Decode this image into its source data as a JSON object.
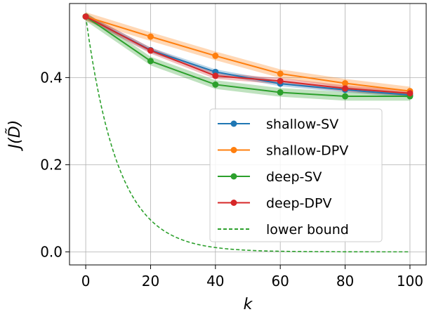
{
  "chart_data": {
    "type": "line",
    "title": "",
    "xlabel": "k",
    "ylabel": "J(D̃)",
    "xlim": [
      -5,
      105
    ],
    "ylim": [
      -0.03,
      0.57
    ],
    "grid": true,
    "legend_position": "center-right",
    "x": [
      0,
      20,
      40,
      60,
      80,
      100
    ],
    "xticks": [
      0,
      20,
      40,
      60,
      80,
      100
    ],
    "xtick_labels": [
      "0",
      "20",
      "40",
      "60",
      "80",
      "100"
    ],
    "yticks": [
      0.0,
      0.2,
      0.4
    ],
    "ytick_labels": [
      "0.0",
      "0.2",
      "0.4"
    ],
    "series": [
      {
        "name": "shallow-SV",
        "color": "#1f77b4",
        "style": "solid-marker",
        "values": [
          0.54,
          0.463,
          0.413,
          0.386,
          0.372,
          0.36
        ],
        "band": 0.006
      },
      {
        "name": "shallow-DPV",
        "color": "#ff7f0e",
        "style": "solid-marker",
        "values": [
          0.54,
          0.494,
          0.45,
          0.409,
          0.387,
          0.369
        ],
        "band": 0.01
      },
      {
        "name": "deep-SV",
        "color": "#2ca02c",
        "style": "solid-marker",
        "values": [
          0.54,
          0.438,
          0.384,
          0.366,
          0.357,
          0.357
        ],
        "band": 0.01
      },
      {
        "name": "deep-DPV",
        "color": "#d62728",
        "style": "solid-marker",
        "values": [
          0.54,
          0.462,
          0.404,
          0.392,
          0.375,
          0.364
        ],
        "band": 0.007
      },
      {
        "name": "lower bound",
        "color": "#2ca02c",
        "style": "dashed",
        "formula": "0.54*exp(-k/10)"
      }
    ]
  }
}
